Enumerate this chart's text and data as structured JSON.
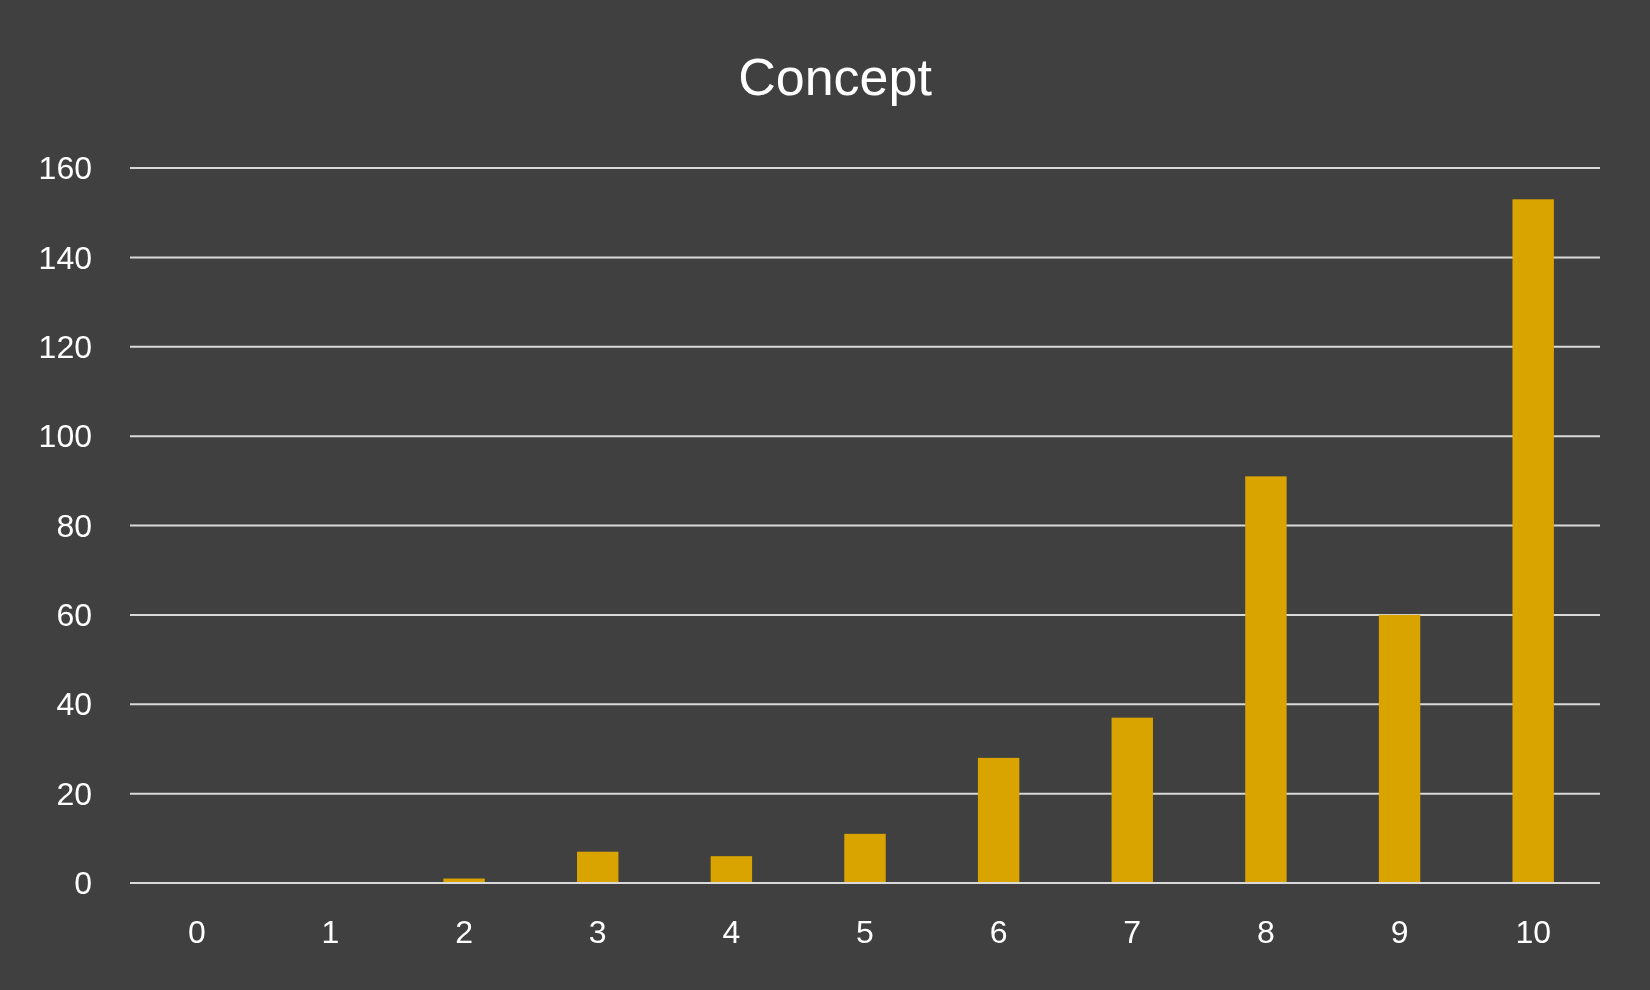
{
  "chart_data": {
    "type": "bar",
    "title": "Concept",
    "categories": [
      "0",
      "1",
      "2",
      "3",
      "4",
      "5",
      "6",
      "7",
      "8",
      "9",
      "10"
    ],
    "values": [
      0,
      0,
      1,
      7,
      6,
      11,
      28,
      37,
      91,
      60,
      153
    ],
    "color": "#d9a300",
    "ylim": [
      0,
      160
    ],
    "yticks": [
      0,
      20,
      40,
      60,
      80,
      100,
      120,
      140,
      160
    ],
    "grid": "y"
  }
}
